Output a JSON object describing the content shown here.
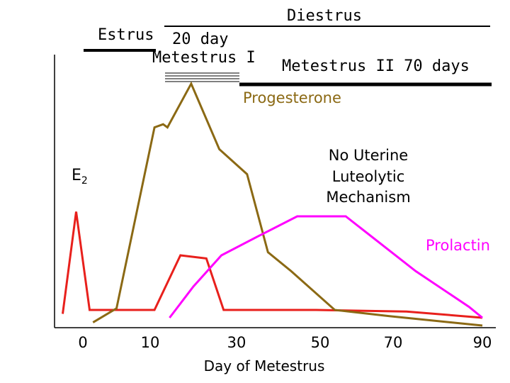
{
  "chart_data": {
    "type": "line",
    "xlabel": "Day of Metestrus",
    "ylabel": "",
    "x_ticks": [
      "0",
      "10",
      "30",
      "50",
      "70",
      "90"
    ],
    "phases": {
      "estrus": "Estrus",
      "metestrus1": "20 day",
      "metestrus1_name": "Metestrus I",
      "diestrus": "Diestrus",
      "metestrus2": "Metestrus II 70 days"
    },
    "annotations": {
      "no_luteolytic": [
        "No Uterine",
        "Luteolytic",
        "Mechanism"
      ]
    },
    "series": [
      {
        "name": "E",
        "name_sub": "2",
        "color": "#e8201c",
        "points": [
          [
            -3,
            2.5
          ],
          [
            -1,
            68
          ],
          [
            1,
            5
          ],
          [
            11,
            5
          ],
          [
            17,
            40
          ],
          [
            23,
            38
          ],
          [
            27,
            5
          ],
          [
            49,
            5
          ],
          [
            73,
            4
          ],
          [
            90,
            0
          ]
        ]
      },
      {
        "name": "Progesterone",
        "color": "#8b6914",
        "points": [
          [
            1.5,
            -3
          ],
          [
            5,
            6
          ],
          [
            11,
            122
          ],
          [
            13,
            124
          ],
          [
            14,
            122
          ],
          [
            19.5,
            150
          ],
          [
            26,
            108
          ],
          [
            32.5,
            92
          ],
          [
            37.5,
            42
          ],
          [
            43,
            30
          ],
          [
            54,
            5
          ],
          [
            69,
            1
          ],
          [
            90,
            -5
          ]
        ]
      },
      {
        "name": "Prolactin",
        "color": "#ff00ff",
        "points": [
          [
            14.5,
            0
          ],
          [
            20,
            20
          ],
          [
            26.5,
            40
          ],
          [
            35,
            52
          ],
          [
            44.5,
            65
          ],
          [
            57,
            65
          ],
          [
            75,
            30
          ],
          [
            87,
            7
          ],
          [
            90,
            0
          ]
        ]
      }
    ]
  }
}
